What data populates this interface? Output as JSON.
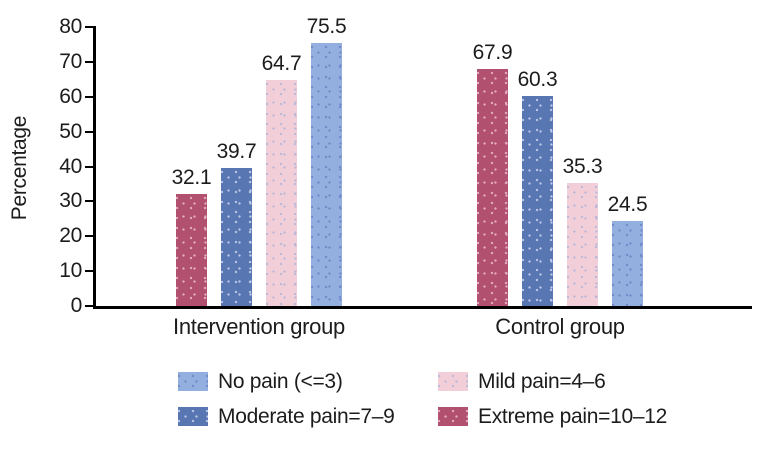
{
  "chart_data": {
    "type": "bar",
    "title": "",
    "categories": [
      "Intervention group",
      "Control group"
    ],
    "series": [
      {
        "name": "Extreme pain=10–12",
        "color": "#b25070",
        "dot_color": "#e2b0bf",
        "values": [
          32.1,
          67.9
        ]
      },
      {
        "name": "Moderate pain=7–9",
        "color": "#5876b2",
        "dot_color": "#bdc9e6",
        "values": [
          39.7,
          60.3
        ]
      },
      {
        "name": "Mild pain=4–6",
        "color": "#f2cfd8",
        "dot_color": "#b9b7d8",
        "values": [
          64.7,
          35.3
        ]
      },
      {
        "name": "No pain (<=3)",
        "color": "#93afdf",
        "dot_color": "#7187c7",
        "values": [
          75.5,
          24.5
        ]
      }
    ],
    "xlabel": "",
    "ylabel": "Percentage",
    "ylim": [
      0,
      80
    ],
    "yticks": [
      0,
      10,
      20,
      30,
      40,
      50,
      60,
      70,
      80
    ],
    "value_label_decimals": 1,
    "grid": false,
    "legend": {
      "position": "bottom",
      "columns": 2,
      "order": [
        3,
        2,
        1,
        0
      ]
    },
    "axis_color": "#000000",
    "text_color": "#1c1c1c",
    "background_color": "#ffffff"
  }
}
